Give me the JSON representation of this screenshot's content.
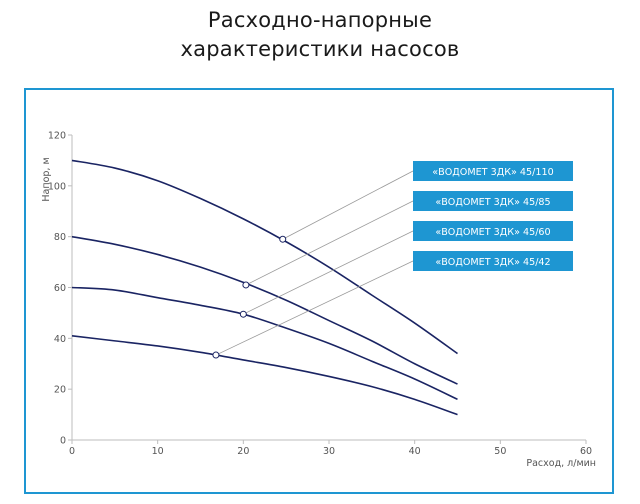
{
  "title": {
    "line1": "Расходно-напорные",
    "line2": "характеристики насосов"
  },
  "colors": {
    "frame": "#1e96d2",
    "curve": "#1a2463",
    "legend_bg": "#1e96d2",
    "leader": "#9a9a9a",
    "axis": "#bdbdbd"
  },
  "chart_data": {
    "type": "line",
    "title": "",
    "xlabel": "Расход, л/мин",
    "ylabel": "Напор, м",
    "xlim": [
      0,
      60
    ],
    "ylim": [
      0,
      120
    ],
    "xticks": [
      0,
      10,
      20,
      30,
      40,
      50,
      60
    ],
    "yticks": [
      0,
      20,
      40,
      60,
      80,
      100,
      120
    ],
    "grid": false,
    "legend_position": "right",
    "series": [
      {
        "name": "«ВОДОМЕТ 3ДК» 45/110",
        "x": [
          0,
          5,
          10,
          15,
          20,
          25,
          30,
          35,
          40,
          45
        ],
        "y": [
          110,
          107,
          102,
          95,
          87,
          78,
          68,
          57,
          46,
          34
        ],
        "marker": {
          "x": 24.6,
          "y": 79
        }
      },
      {
        "name": "«ВОДОМЕТ 3ДК» 45/85",
        "x": [
          0,
          5,
          10,
          15,
          20,
          25,
          30,
          35,
          40,
          45
        ],
        "y": [
          80,
          77,
          73,
          68,
          62,
          55,
          47,
          39,
          30,
          22
        ],
        "marker": {
          "x": 20.3,
          "y": 61
        }
      },
      {
        "name": "«ВОДОМЕТ 3ДК» 45/60",
        "x": [
          0,
          5,
          10,
          15,
          20,
          25,
          30,
          35,
          40,
          45
        ],
        "y": [
          60,
          59,
          56,
          53,
          49.5,
          44,
          38,
          31,
          24,
          16
        ]
      },
      {
        "name": "«ВОДОМЕТ 3ДК» 45/42",
        "x": [
          0,
          5,
          10,
          15,
          20,
          25,
          30,
          35,
          40,
          45
        ],
        "y": [
          41,
          39,
          37,
          34.5,
          31.5,
          28.5,
          25,
          21,
          16,
          10
        ]
      }
    ]
  }
}
